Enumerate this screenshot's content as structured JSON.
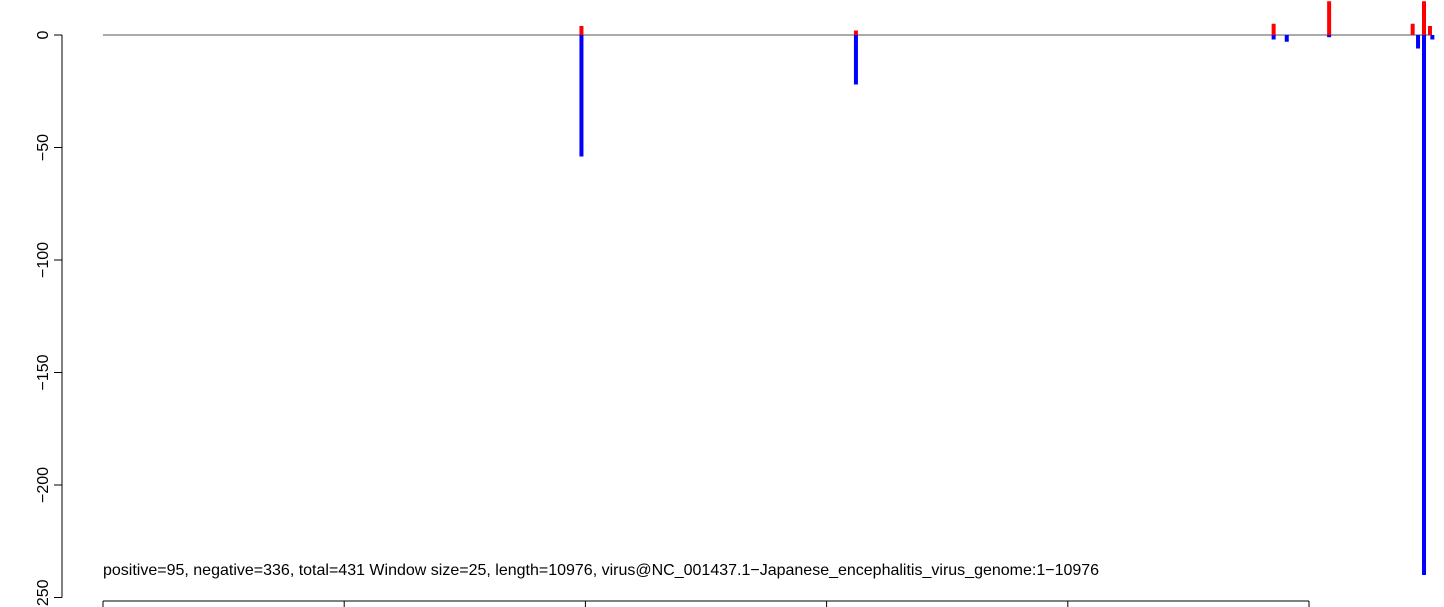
{
  "chart_data": {
    "type": "bar",
    "caption": "positive=95, negative=336, total=431 Window size=25, length=10976, virus@NC_001437.1−Japanese_encephalitis_virus_genome:1−10976",
    "x_range": [
      1,
      10976
    ],
    "ylim": [
      -250,
      15
    ],
    "y_ticks": [
      0,
      -50,
      -100,
      -150,
      -200,
      -250
    ],
    "y_tick_labels": [
      "0",
      "−50",
      "−100",
      "−150",
      "−200",
      "−250"
    ],
    "x_tick_count": 6,
    "zero_line": true,
    "colors": {
      "positive": "#ff0000",
      "negative": "#0000ff",
      "axis": "#000000",
      "baseline": "#555555"
    },
    "series": [
      {
        "name": "positive",
        "x": [
          4010,
          6310,
          9810,
          10275,
          10975,
          11070,
          11120
        ],
        "values": [
          4,
          2,
          5,
          15,
          5,
          15,
          4
        ]
      },
      {
        "name": "negative",
        "x": [
          4010,
          6310,
          9810,
          9920,
          10275,
          11020,
          11070,
          11140
        ],
        "values": [
          -54,
          -22,
          -2,
          -3,
          -1,
          -6,
          -240,
          -2
        ]
      }
    ]
  }
}
